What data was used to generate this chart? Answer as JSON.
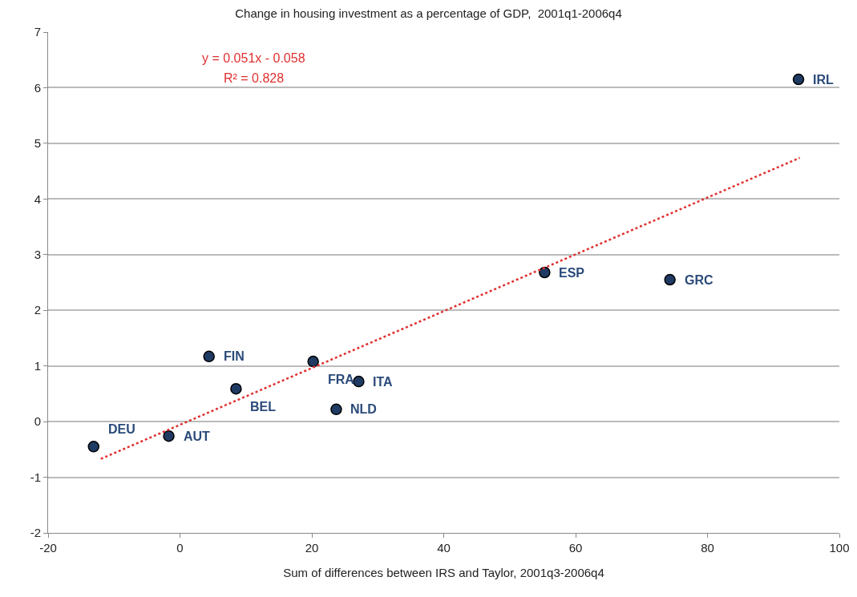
{
  "chart_data": {
    "type": "scatter",
    "title": "Change in housing investment as a percentage of GDP,  2001q1-2006q4",
    "xlabel": "Sum of differences between IRS and Taylor, 2001q3-2006q4",
    "series": [
      {
        "color": "#1f3b63",
        "marker": "circle",
        "x": [
          -13.1,
          -1.7,
          4.4,
          8.5,
          20.2,
          23.7,
          27.1,
          55.3,
          74.3,
          93.8
        ],
        "values": [
          -0.45,
          -0.26,
          1.17,
          0.59,
          1.08,
          0.22,
          0.72,
          2.68,
          2.55,
          6.15
        ]
      },
      {
        "type": "line",
        "color": "#e03030",
        "marker": "none",
        "x": [
          -12,
          94
        ],
        "values": [
          -0.67,
          4.74
        ]
      }
    ],
    "xlim": [
      -20,
      100
    ],
    "xticks": [
      -20,
      0,
      20,
      40,
      60,
      80,
      100
    ],
    "ylim": [
      -2,
      7
    ],
    "yticks": [
      -2,
      -1,
      0,
      1,
      2,
      3,
      4,
      5,
      6,
      7
    ],
    "grid": "y",
    "line_style": "dotted",
    "annotations": [
      {
        "text": "DEU",
        "x": -13.1,
        "y": -0.45
      },
      {
        "text": "AUT",
        "x": -1.7,
        "y": -0.26
      },
      {
        "text": "FIN",
        "x": 4.4,
        "y": 1.17
      },
      {
        "text": "BEL",
        "x": 8.5,
        "y": 0.59
      },
      {
        "text": "FRA",
        "x": 20.2,
        "y": 1.08
      },
      {
        "text": "NLD",
        "x": 23.7,
        "y": 0.22
      },
      {
        "text": "ITA",
        "x": 27.1,
        "y": 0.72
      },
      {
        "text": "ESP",
        "x": 55.3,
        "y": 2.68
      },
      {
        "text": "GRC",
        "x": 74.3,
        "y": 2.55
      },
      {
        "text": "IRL",
        "x": 93.8,
        "y": 6.15
      },
      "y = 0.051x - 0.058",
      "R² = 0.828"
    ]
  }
}
